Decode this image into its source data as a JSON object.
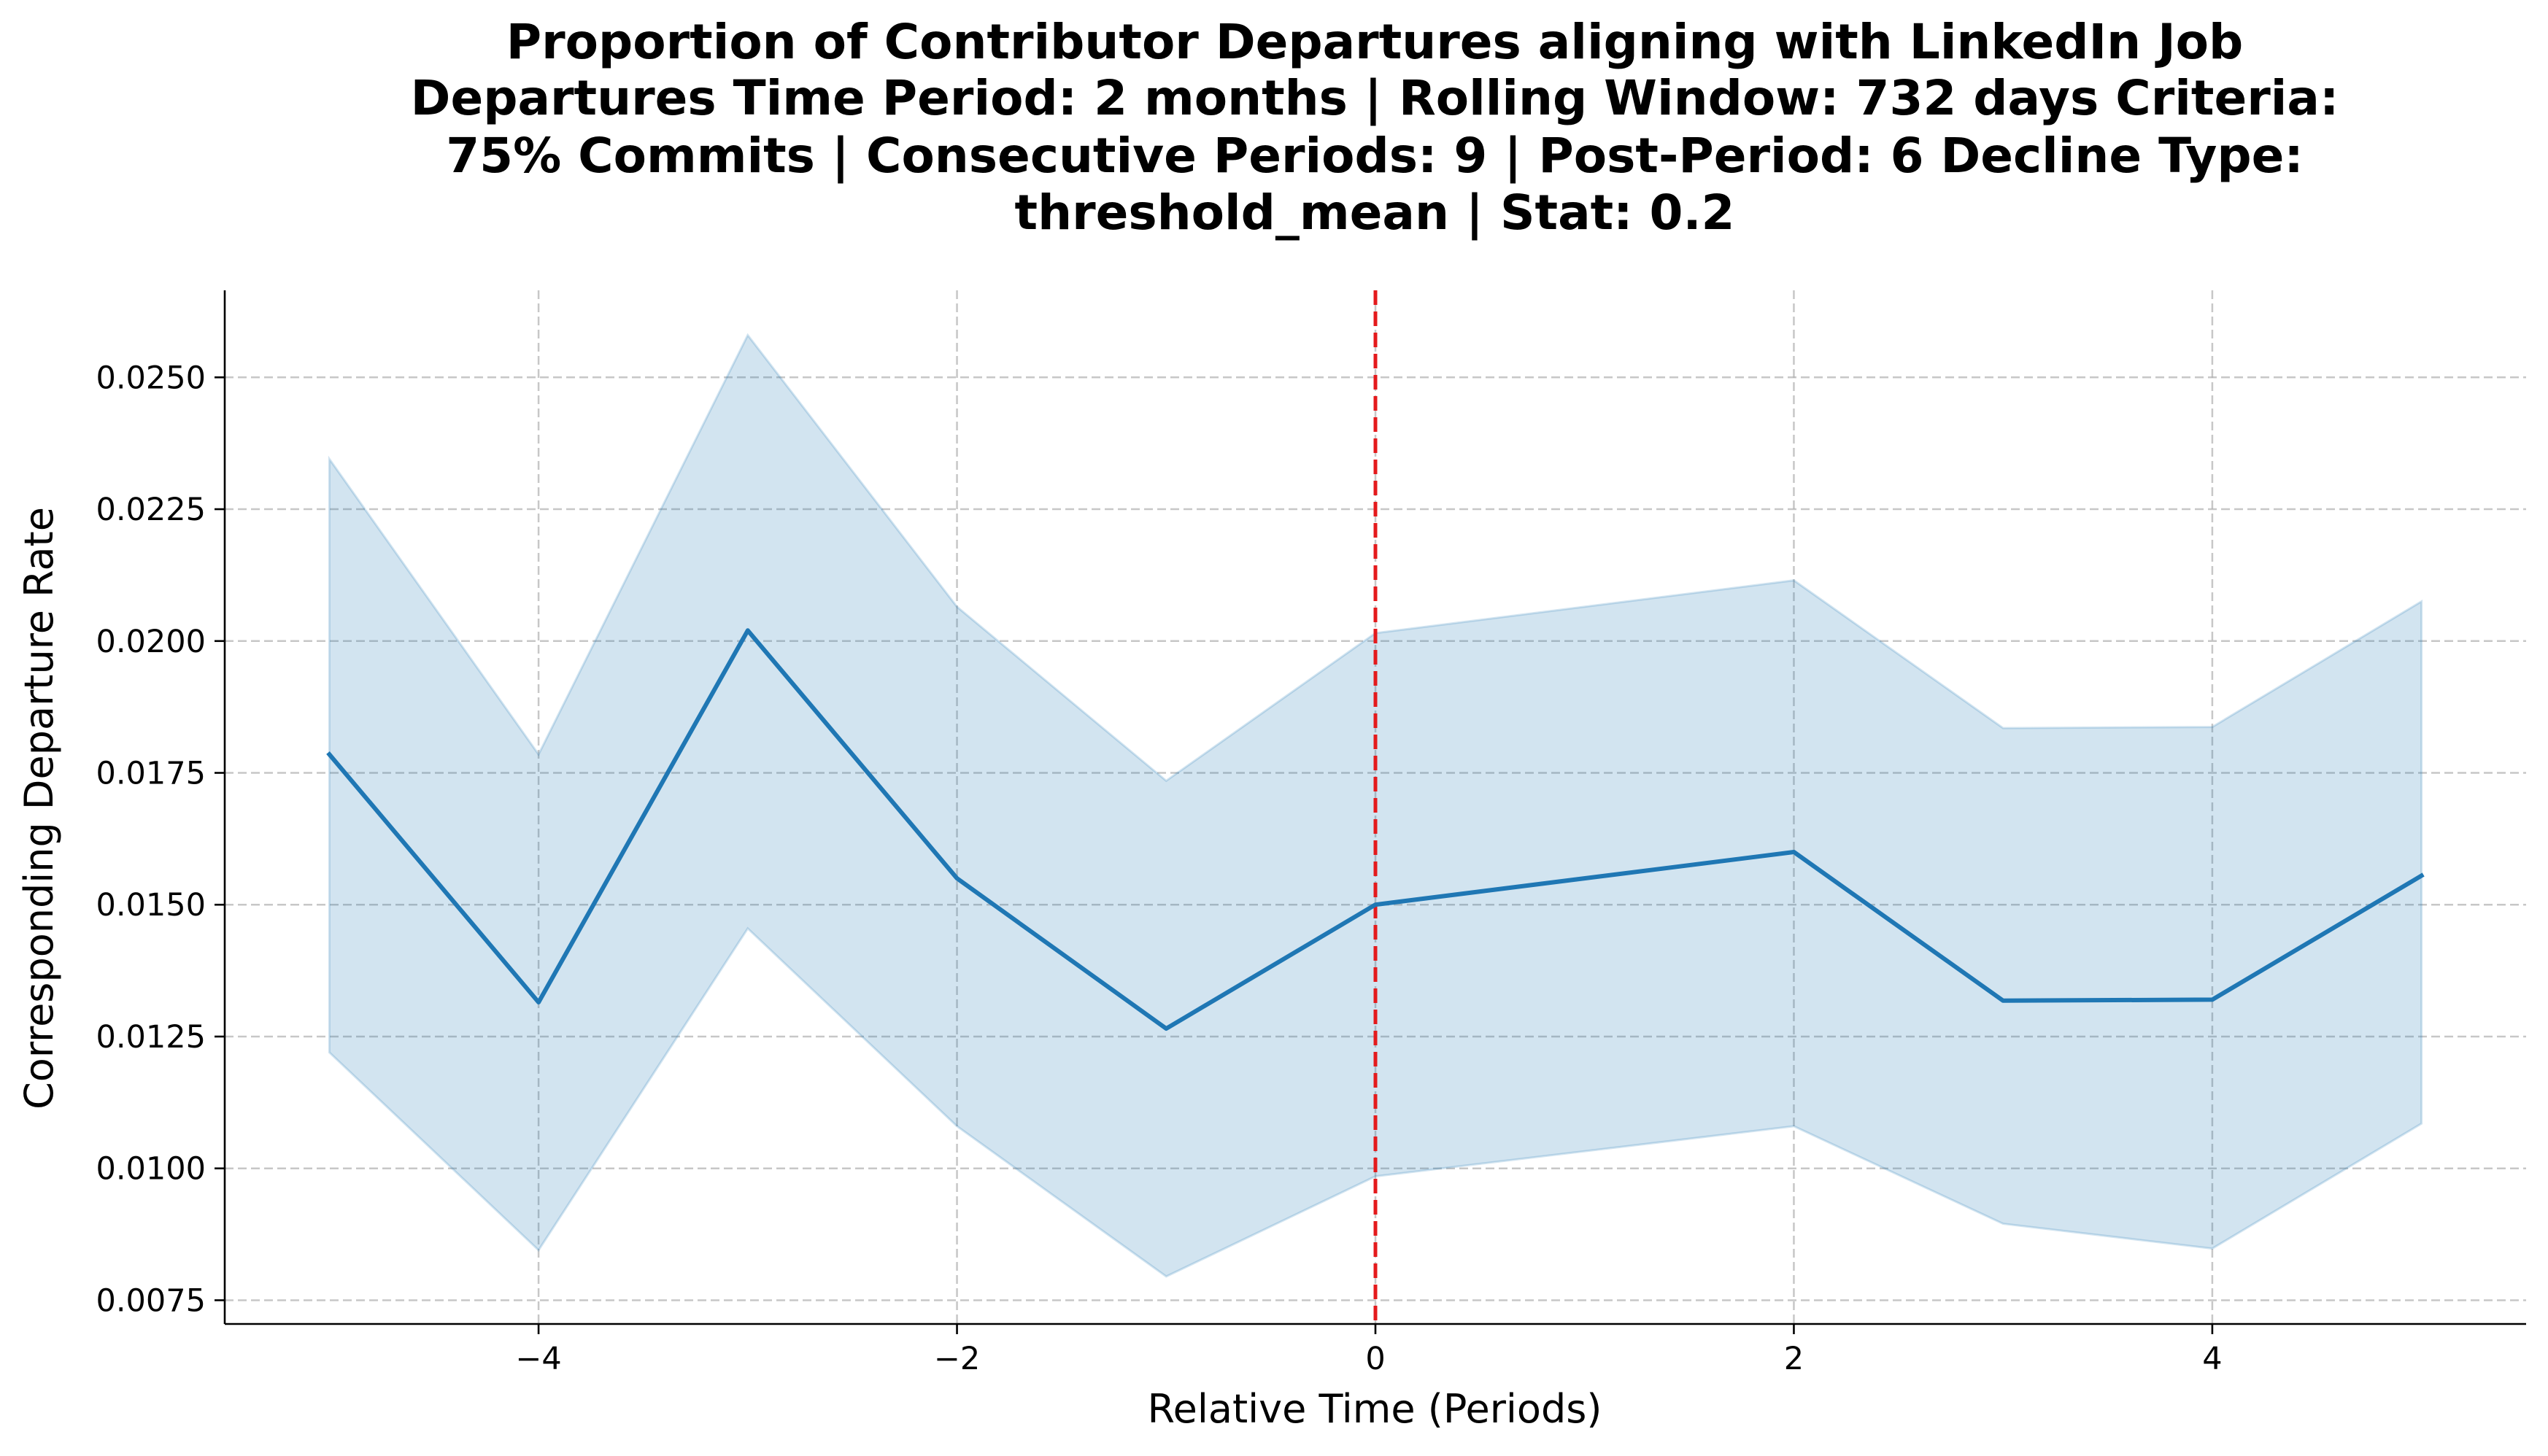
{
  "chart_data": {
    "type": "line",
    "title_lines": [
      "Proportion of Contributor Departures aligning with LinkedIn Job",
      "Departures Time Period: 2 months | Rolling Window: 732 days  Criteria:",
      "75% Commits | Consecutive Periods: 9 | Post-Period: 6 Decline Type:",
      "threshold_mean | Stat: 0.2"
    ],
    "xlabel": "Relative Time (Periods)",
    "ylabel": "Corresponding Departure Rate",
    "xlim": [
      -5.5,
      5.5
    ],
    "ylim": [
      0.00705,
      0.02665
    ],
    "x_ticks": [
      -4,
      -2,
      0,
      2,
      4
    ],
    "x_tick_labels": [
      "−4",
      "−2",
      "0",
      "2",
      "4"
    ],
    "y_ticks": [
      0.0075,
      0.01,
      0.0125,
      0.015,
      0.0175,
      0.02,
      0.0225,
      0.025
    ],
    "y_tick_labels": [
      "0.0075",
      "0.0100",
      "0.0125",
      "0.0150",
      "0.0175",
      "0.0200",
      "0.0225",
      "0.0250"
    ],
    "grid": true,
    "x": [
      -5,
      -4,
      -3,
      -2,
      -1,
      0,
      2,
      3,
      4,
      5
    ],
    "series": [
      {
        "values": [
          0.01785,
          0.01315,
          0.0202,
          0.0155,
          0.01265,
          0.015,
          0.016,
          0.01318,
          0.0132,
          0.01555
        ],
        "lower": [
          0.0122,
          0.00845,
          0.01455,
          0.0108,
          0.00795,
          0.00985,
          0.0108,
          0.00895,
          0.00848,
          0.01085
        ],
        "upper": [
          0.02345,
          0.01785,
          0.0258,
          0.02065,
          0.01735,
          0.02015,
          0.02115,
          0.01835,
          0.01837,
          0.02075
        ],
        "color": "#1f77b4",
        "band_color": "#1f77b4"
      }
    ],
    "reference_line": {
      "x": 0,
      "color": "#e41a1c",
      "style": "dashed"
    }
  }
}
